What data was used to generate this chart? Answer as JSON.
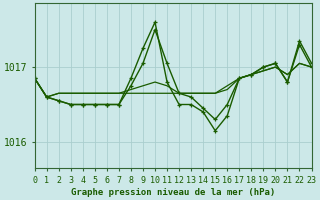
{
  "title": "Graphe pression niveau de la mer (hPa)",
  "bg_color": "#cce8e8",
  "grid_color": "#aacece",
  "line_color": "#1a5c00",
  "marker_color": "#1a5c00",
  "xmin": 0,
  "xmax": 23,
  "ymin": 1015.65,
  "ymax": 1017.85,
  "yticks": [
    1016,
    1017
  ],
  "series": [
    {
      "values": [
        1016.85,
        1016.6,
        1016.65,
        1016.65,
        1016.65,
        1016.65,
        1016.65,
        1016.65,
        1016.65,
        1016.65,
        1016.65,
        1016.65,
        1016.65,
        1016.65,
        1016.65,
        1016.65,
        1016.75,
        1016.85,
        1016.9,
        1016.95,
        1017.0,
        1016.9,
        1017.05,
        1017.0
      ],
      "marker": false,
      "lw": 0.9
    },
    {
      "values": [
        1016.85,
        1016.6,
        1016.65,
        1016.65,
        1016.65,
        1016.65,
        1016.65,
        1016.65,
        1016.7,
        1016.75,
        1016.8,
        1016.75,
        1016.65,
        1016.65,
        1016.65,
        1016.65,
        1016.7,
        1016.85,
        1016.9,
        1016.95,
        1017.0,
        1016.9,
        1017.05,
        1017.0
      ],
      "marker": false,
      "lw": 0.9
    },
    {
      "values": [
        1016.85,
        1016.6,
        1016.55,
        1016.5,
        1016.5,
        1016.5,
        1016.5,
        1016.5,
        1016.75,
        1017.05,
        1017.5,
        1017.05,
        1016.65,
        1016.6,
        1016.45,
        1016.3,
        1016.5,
        1016.85,
        1016.9,
        1017.0,
        1017.05,
        1016.8,
        1017.3,
        1017.0
      ],
      "marker": true,
      "lw": 1.0
    },
    {
      "values": [
        1016.85,
        1016.6,
        1016.55,
        1016.5,
        1016.5,
        1016.5,
        1016.5,
        1016.5,
        1016.85,
        1017.25,
        1017.6,
        1016.8,
        1016.5,
        1016.5,
        1016.4,
        1016.15,
        1016.35,
        1016.85,
        1016.9,
        1017.0,
        1017.05,
        1016.8,
        1017.35,
        1017.05
      ],
      "marker": true,
      "lw": 1.0
    }
  ],
  "spine_color": "#336633",
  "tick_color": "#336633",
  "label_fontsize": 6.0,
  "xlabel_fontsize": 6.5,
  "ytick_fontsize": 7.0
}
